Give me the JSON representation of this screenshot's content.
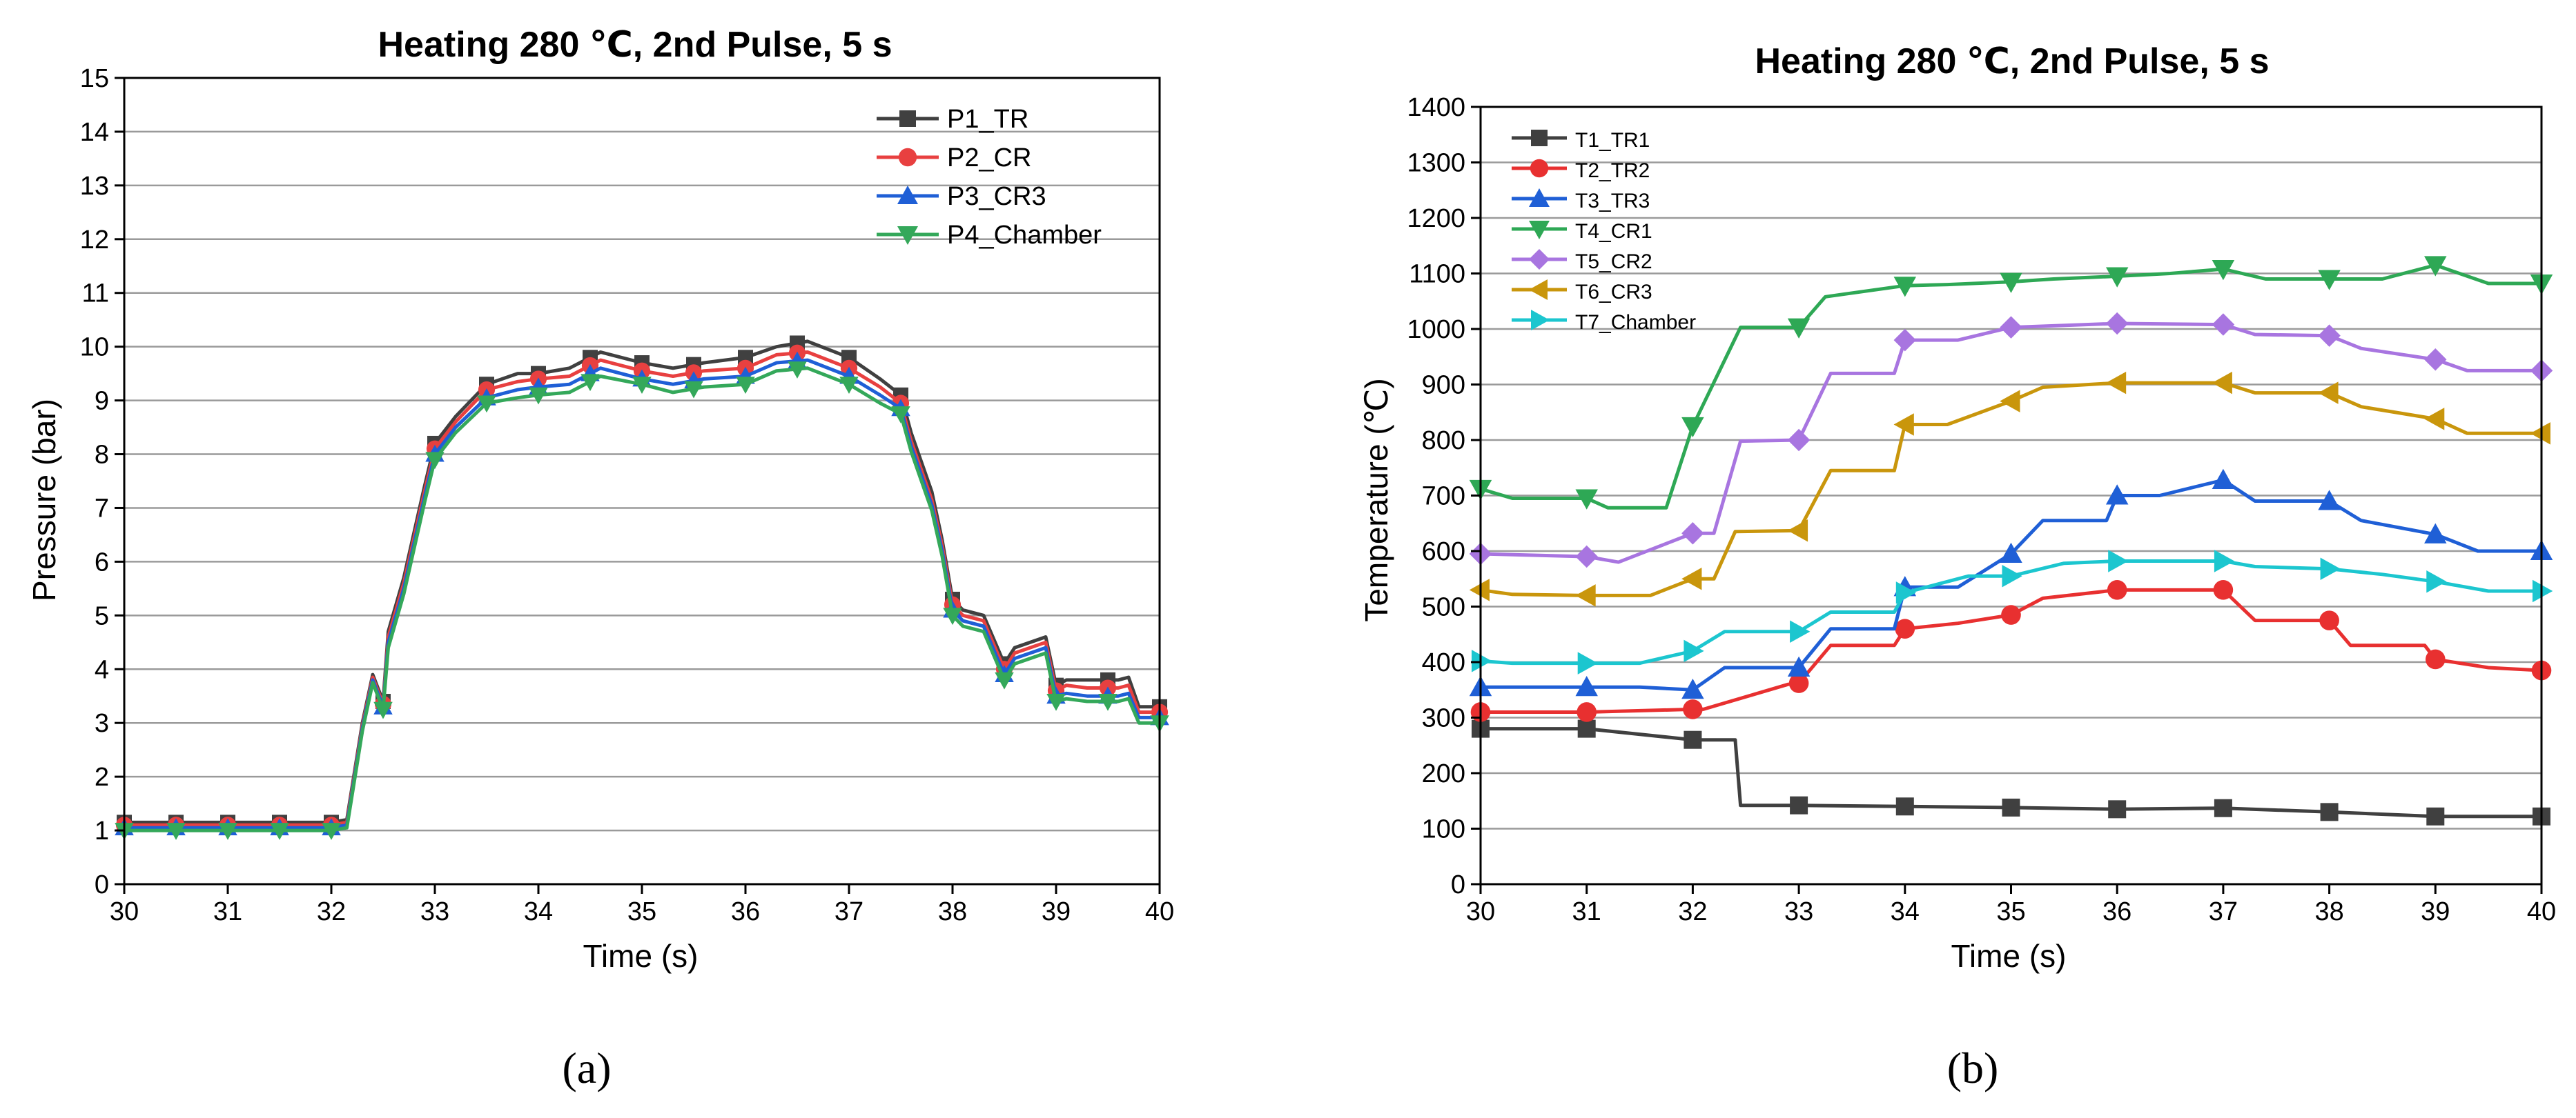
{
  "figure": {
    "panel_a_label": "(a)",
    "panel_b_label": "(b)"
  },
  "chart_data": [
    {
      "type": "line",
      "title": "Heating 280 ℃, 2nd Pulse, 5 s",
      "xlabel": "Time (s)",
      "ylabel": "Pressure (bar)",
      "xlim": [
        30,
        40
      ],
      "ylim": [
        0,
        15
      ],
      "xticks": [
        "30",
        "31",
        "32",
        "33",
        "34",
        "35",
        "36",
        "37",
        "38",
        "39",
        "40"
      ],
      "yticks": [
        "0",
        "1",
        "2",
        "3",
        "4",
        "5",
        "6",
        "7",
        "8",
        "9",
        "10",
        "11",
        "12",
        "13",
        "14",
        "15"
      ],
      "grid": true,
      "legend_position": "top-right",
      "series": [
        {
          "name": "P1_TR",
          "color": "#404040",
          "marker": "square",
          "x": [
            30,
            30.5,
            31,
            31.5,
            32,
            32.15,
            32.3,
            32.4,
            32.5,
            32.55,
            32.7,
            32.9,
            33,
            33.2,
            33.5,
            33.8,
            34,
            34.3,
            34.6,
            35,
            35.3,
            35.6,
            36,
            36.3,
            36.6,
            37,
            37.3,
            37.5,
            37.6,
            37.8,
            37.9,
            38,
            38.1,
            38.3,
            38.5,
            38.6,
            38.9,
            39,
            39.1,
            39.3,
            39.6,
            39.7,
            39.8,
            40
          ],
          "y": [
            1.15,
            1.15,
            1.15,
            1.15,
            1.15,
            1.2,
            3.0,
            3.9,
            3.4,
            4.7,
            5.7,
            7.4,
            8.2,
            8.7,
            9.3,
            9.5,
            9.5,
            9.6,
            9.9,
            9.7,
            9.6,
            9.7,
            9.8,
            10.0,
            10.1,
            9.8,
            9.4,
            9.1,
            8.4,
            7.3,
            6.4,
            5.3,
            5.1,
            5.0,
            4.1,
            4.4,
            4.6,
            3.7,
            3.8,
            3.8,
            3.8,
            3.85,
            3.3,
            3.3
          ]
        },
        {
          "name": "P2_CR",
          "color": "#e84040",
          "marker": "circle",
          "x": [
            30,
            30.5,
            31,
            31.5,
            32,
            32.15,
            32.3,
            32.4,
            32.5,
            32.55,
            32.7,
            32.9,
            33,
            33.2,
            33.5,
            33.8,
            34,
            34.3,
            34.6,
            35,
            35.3,
            35.6,
            36,
            36.3,
            36.6,
            37,
            37.3,
            37.5,
            37.6,
            37.8,
            37.9,
            38,
            38.1,
            38.3,
            38.5,
            38.6,
            38.9,
            39,
            39.1,
            39.3,
            39.6,
            39.7,
            39.8,
            40
          ],
          "y": [
            1.1,
            1.1,
            1.1,
            1.1,
            1.1,
            1.15,
            2.95,
            3.85,
            3.35,
            4.6,
            5.6,
            7.3,
            8.1,
            8.6,
            9.2,
            9.35,
            9.4,
            9.45,
            9.75,
            9.55,
            9.45,
            9.55,
            9.6,
            9.85,
            9.9,
            9.6,
            9.25,
            8.95,
            8.25,
            7.15,
            6.3,
            5.2,
            5.0,
            4.9,
            4.0,
            4.3,
            4.5,
            3.6,
            3.7,
            3.65,
            3.65,
            3.7,
            3.2,
            3.2
          ]
        },
        {
          "name": "P3_CR3",
          "color": "#1f5fd6",
          "marker": "triangle-up",
          "x": [
            30,
            30.5,
            31,
            31.5,
            32,
            32.15,
            32.3,
            32.4,
            32.5,
            32.55,
            32.7,
            32.9,
            33,
            33.2,
            33.5,
            33.8,
            34,
            34.3,
            34.6,
            35,
            35.3,
            35.6,
            36,
            36.3,
            36.6,
            37,
            37.3,
            37.5,
            37.6,
            37.8,
            37.9,
            38,
            38.1,
            38.3,
            38.5,
            38.6,
            38.9,
            39,
            39.1,
            39.3,
            39.6,
            39.7,
            39.8,
            40
          ],
          "y": [
            1.05,
            1.05,
            1.05,
            1.05,
            1.05,
            1.1,
            2.9,
            3.8,
            3.3,
            4.5,
            5.5,
            7.2,
            8.0,
            8.5,
            9.05,
            9.2,
            9.25,
            9.3,
            9.6,
            9.4,
            9.3,
            9.4,
            9.45,
            9.7,
            9.75,
            9.45,
            9.1,
            8.85,
            8.15,
            7.05,
            6.2,
            5.1,
            4.9,
            4.8,
            3.9,
            4.2,
            4.4,
            3.5,
            3.55,
            3.5,
            3.5,
            3.55,
            3.1,
            3.1
          ]
        },
        {
          "name": "P4_Chamber",
          "color": "#34a85a",
          "marker": "triangle-down",
          "x": [
            30,
            30.5,
            31,
            31.5,
            32,
            32.15,
            32.3,
            32.4,
            32.5,
            32.55,
            32.7,
            32.9,
            33,
            33.2,
            33.5,
            33.8,
            34,
            34.3,
            34.6,
            35,
            35.3,
            35.6,
            36,
            36.3,
            36.6,
            37,
            37.3,
            37.5,
            37.6,
            37.8,
            37.9,
            38,
            38.1,
            38.3,
            38.5,
            38.6,
            38.9,
            39,
            39.1,
            39.3,
            39.6,
            39.7,
            39.8,
            40
          ],
          "y": [
            1.0,
            1.0,
            1.0,
            1.0,
            1.0,
            1.05,
            2.85,
            3.75,
            3.25,
            4.4,
            5.4,
            7.1,
            7.9,
            8.4,
            8.95,
            9.05,
            9.1,
            9.15,
            9.45,
            9.3,
            9.15,
            9.25,
            9.3,
            9.55,
            9.6,
            9.3,
            8.95,
            8.75,
            8.05,
            6.95,
            6.1,
            5.0,
            4.8,
            4.7,
            3.8,
            4.1,
            4.3,
            3.4,
            3.45,
            3.4,
            3.4,
            3.45,
            3.0,
            3.0
          ]
        }
      ]
    },
    {
      "type": "line",
      "title": "Heating 280 ℃, 2nd Pulse, 5 s",
      "xlabel": "Time (s)",
      "ylabel": "Temperature (℃)",
      "xlim": [
        30,
        40
      ],
      "ylim": [
        0,
        1400
      ],
      "xticks": [
        "30",
        "31",
        "32",
        "33",
        "34",
        "35",
        "36",
        "37",
        "38",
        "39",
        "40"
      ],
      "yticks": [
        "0",
        "100",
        "200",
        "300",
        "400",
        "500",
        "600",
        "700",
        "800",
        "900",
        "1000",
        "1100",
        "1200",
        "1300",
        "1400"
      ],
      "grid": true,
      "legend_position": "top-left",
      "series": [
        {
          "name": "T1_TR1",
          "color": "#404040",
          "marker": "square",
          "x": [
            30,
            31,
            32,
            32.4,
            32.45,
            33,
            34,
            35,
            36,
            37,
            38,
            39,
            40
          ],
          "y": [
            280,
            280,
            260,
            260,
            142,
            142,
            140,
            138,
            135,
            137,
            130,
            122,
            122
          ]
        },
        {
          "name": "T2_TR2",
          "color": "#e83030",
          "marker": "circle",
          "x": [
            30,
            31,
            32,
            32.1,
            32.9,
            33,
            33.3,
            33.9,
            34,
            34.5,
            35,
            35.3,
            36,
            37,
            37.3,
            38,
            38.2,
            38.9,
            39,
            39.5,
            40
          ],
          "y": [
            310,
            310,
            315,
            315,
            360,
            362,
            430,
            430,
            460,
            470,
            485,
            515,
            530,
            530,
            475,
            475,
            430,
            430,
            405,
            390,
            385
          ]
        },
        {
          "name": "T3_TR3",
          "color": "#1f5fd6",
          "marker": "triangle-up",
          "x": [
            30,
            31,
            31.5,
            32,
            32.3,
            33,
            33.3,
            33.9,
            34,
            34.5,
            35,
            35.3,
            35.9,
            36,
            36.4,
            37,
            37.3,
            38,
            38.3,
            39,
            39.4,
            40
          ],
          "y": [
            355,
            355,
            355,
            350,
            390,
            390,
            460,
            460,
            535,
            535,
            595,
            655,
            655,
            700,
            700,
            728,
            690,
            690,
            655,
            630,
            600,
            600
          ]
        },
        {
          "name": "T4_CR1",
          "color": "#2ea855",
          "marker": "triangle-down",
          "x": [
            30,
            30.3,
            31,
            31.2,
            31.75,
            32,
            32.45,
            33,
            33.25,
            34,
            34.4,
            35,
            35.4,
            36,
            36.5,
            37,
            37.4,
            38,
            38.5,
            39,
            39.5,
            40
          ],
          "y": [
            712,
            695,
            695,
            678,
            678,
            825,
            1003,
            1003,
            1058,
            1078,
            1080,
            1085,
            1090,
            1095,
            1100,
            1108,
            1090,
            1090,
            1090,
            1115,
            1082,
            1082
          ]
        },
        {
          "name": "T5_CR2",
          "color": "#a875e0",
          "marker": "diamond",
          "x": [
            30,
            31,
            31.3,
            32,
            32.2,
            32.45,
            33,
            33.3,
            33.9,
            34,
            34.5,
            35,
            36,
            37,
            37.3,
            38,
            38.3,
            39,
            39.3,
            40
          ],
          "y": [
            595,
            590,
            580,
            632,
            632,
            798,
            800,
            920,
            920,
            980,
            980,
            1003,
            1010,
            1008,
            990,
            988,
            965,
            945,
            925,
            925
          ]
        },
        {
          "name": "T6_CR3",
          "color": "#c9960c",
          "marker": "triangle-left",
          "x": [
            30,
            30.3,
            31,
            31.6,
            32,
            32.2,
            32.4,
            33,
            33.3,
            33.9,
            34,
            34.4,
            35,
            35.3,
            36,
            37,
            37.3,
            38,
            38.3,
            39,
            39.3,
            40
          ],
          "y": [
            530,
            522,
            520,
            520,
            550,
            550,
            635,
            637,
            745,
            745,
            828,
            828,
            870,
            895,
            903,
            903,
            885,
            885,
            860,
            838,
            812,
            812
          ]
        },
        {
          "name": "T7_Chamber",
          "color": "#1cc6cf",
          "marker": "triangle-right",
          "x": [
            30,
            30.3,
            31,
            31.5,
            32,
            32.3,
            33,
            33.3,
            33.9,
            34,
            34.6,
            35,
            35.5,
            36,
            37,
            37.3,
            38,
            38.5,
            39,
            39.5,
            40
          ],
          "y": [
            402,
            398,
            398,
            398,
            420,
            455,
            455,
            490,
            490,
            525,
            555,
            555,
            578,
            582,
            582,
            572,
            568,
            558,
            545,
            528,
            528
          ]
        }
      ]
    }
  ]
}
